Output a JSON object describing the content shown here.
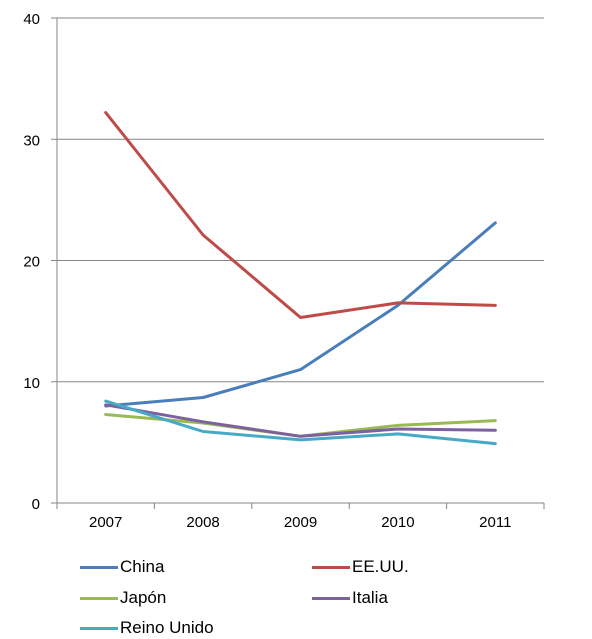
{
  "chart_data": {
    "type": "line",
    "categories": [
      "2007",
      "2008",
      "2009",
      "2010",
      "2011"
    ],
    "ylim": [
      0,
      40
    ],
    "yticks": [
      0,
      10,
      20,
      30,
      40
    ],
    "grid": true,
    "legend_position": "bottom",
    "series": [
      {
        "name": "China",
        "color": "#4A7EBB",
        "values": [
          8.0,
          8.7,
          11.0,
          16.3,
          23.1
        ]
      },
      {
        "name": "EE.UU.",
        "color": "#BE4B48",
        "values": [
          32.2,
          22.1,
          15.3,
          16.5,
          16.3
        ]
      },
      {
        "name": "Japón",
        "color": "#98B954",
        "values": [
          7.3,
          6.6,
          5.5,
          6.4,
          6.8
        ]
      },
      {
        "name": "Italia",
        "color": "#7D60A0",
        "values": [
          8.1,
          6.7,
          5.5,
          6.1,
          6.0
        ]
      },
      {
        "name": "Reino Unido",
        "color": "#46AAC5",
        "values": [
          8.4,
          5.9,
          5.2,
          5.7,
          4.9
        ]
      }
    ]
  }
}
